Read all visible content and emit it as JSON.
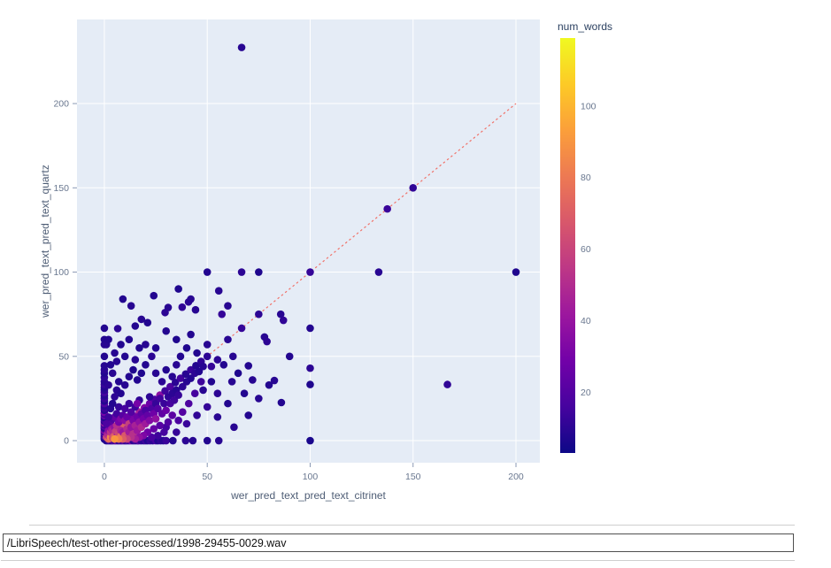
{
  "chart_data": {
    "type": "scatter",
    "xlabel": "wer_pred_text_pred_text_citrinet",
    "ylabel": "wer_pred_text_pred_text_quartz",
    "xlim": [
      -13.3,
      211.6
    ],
    "ylim": [
      -13.1,
      249.9
    ],
    "x_ticks": [
      0,
      50,
      100,
      150,
      200
    ],
    "y_ticks": [
      0,
      50,
      100,
      150,
      200
    ],
    "grid": true,
    "plot_bg": "#e5ecf6",
    "grid_color": "#ffffff",
    "tick_color": "#69778f",
    "axis_title_color": "#4e5d75",
    "marker_radius_px": 4.3,
    "reference_line": {
      "style": "dashed",
      "color": "#f2655a",
      "from": [
        0,
        0
      ],
      "to": [
        200,
        200
      ]
    },
    "colorbar": {
      "title": "num_words",
      "title_color": "#2a3f5f",
      "ticks": [
        20,
        40,
        60,
        80,
        100
      ],
      "cmin": 3,
      "cmax": 119,
      "colormap": "plasma",
      "stops": [
        "#0d0887",
        "#46039f",
        "#7201a8",
        "#9c179e",
        "#bd3786",
        "#d8576b",
        "#ed7953",
        "#fb9f3a",
        "#fdca26",
        "#f0f921"
      ]
    },
    "points": [
      [
        66.7,
        233.3,
        9
      ],
      [
        150,
        150,
        11
      ],
      [
        137.5,
        137.5,
        13
      ],
      [
        50,
        100,
        8
      ],
      [
        66.7,
        100,
        10
      ],
      [
        75,
        100,
        7
      ],
      [
        100,
        100,
        12
      ],
      [
        133.3,
        100,
        9
      ],
      [
        200,
        100,
        7
      ],
      [
        166.7,
        33.3,
        11
      ],
      [
        100,
        66.7,
        8
      ],
      [
        100,
        43,
        10
      ],
      [
        100,
        33.3,
        7
      ],
      [
        100,
        0,
        6
      ],
      [
        55.6,
        88.9,
        9
      ],
      [
        0,
        66.7,
        8
      ],
      [
        6.5,
        66.5,
        10
      ],
      [
        85.7,
        75,
        9
      ],
      [
        87,
        71.4,
        11
      ],
      [
        75,
        75,
        10
      ],
      [
        66.7,
        66.7,
        12
      ],
      [
        77.8,
        61.5,
        9
      ],
      [
        79,
        58.8,
        10
      ],
      [
        40.9,
        82.3,
        10
      ],
      [
        42,
        84,
        9
      ],
      [
        37.8,
        79.2,
        11
      ],
      [
        44.3,
        77.6,
        9
      ],
      [
        82.6,
        35.7,
        9
      ],
      [
        86,
        22.6,
        8
      ],
      [
        31,
        79,
        9
      ],
      [
        29.5,
        76,
        10
      ],
      [
        18,
        72,
        9
      ],
      [
        15,
        68,
        8
      ],
      [
        21,
        70,
        8
      ],
      [
        9,
        84,
        8
      ],
      [
        13,
        80,
        9
      ],
      [
        24,
        86,
        8
      ],
      [
        36,
        90,
        7
      ],
      [
        60,
        80,
        9
      ],
      [
        57.1,
        75,
        12
      ],
      [
        62.5,
        50,
        9
      ],
      [
        70,
        44.4,
        8
      ],
      [
        90,
        50,
        8
      ],
      [
        63,
        8,
        9
      ],
      [
        70,
        15,
        8
      ],
      [
        75,
        25,
        9
      ],
      [
        68,
        28,
        8
      ],
      [
        72,
        36,
        9
      ],
      [
        80,
        33,
        8
      ],
      [
        0,
        0.8,
        6
      ],
      [
        0,
        1.5,
        9
      ],
      [
        0,
        2.2,
        12
      ],
      [
        0,
        3,
        18
      ],
      [
        0,
        3.8,
        8
      ],
      [
        0,
        4.5,
        25
      ],
      [
        0,
        5.3,
        11
      ],
      [
        0,
        6,
        33
      ],
      [
        0,
        7,
        15
      ],
      [
        0,
        7.8,
        9
      ],
      [
        0,
        8.6,
        21
      ],
      [
        0,
        9.5,
        13
      ],
      [
        0,
        10.5,
        41
      ],
      [
        0,
        11.4,
        10
      ],
      [
        0,
        12.5,
        17
      ],
      [
        0,
        13.6,
        8
      ],
      [
        0,
        14.8,
        24
      ],
      [
        0,
        16,
        11
      ],
      [
        0,
        16.7,
        30
      ],
      [
        0,
        18,
        9
      ],
      [
        0,
        19.2,
        14
      ],
      [
        0,
        20.5,
        10
      ],
      [
        0,
        22,
        19
      ],
      [
        0,
        23.5,
        8
      ],
      [
        0,
        25,
        13
      ],
      [
        0,
        26.7,
        9
      ],
      [
        0,
        28.6,
        16
      ],
      [
        0,
        30,
        10
      ],
      [
        0,
        31.5,
        8
      ],
      [
        0,
        33.3,
        12
      ],
      [
        0,
        35,
        9
      ],
      [
        0,
        37.5,
        11
      ],
      [
        0,
        40,
        8
      ],
      [
        0,
        42,
        10
      ],
      [
        0,
        44.4,
        9
      ],
      [
        0,
        50,
        8
      ],
      [
        0,
        57,
        9
      ],
      [
        0,
        60,
        8
      ],
      [
        0.9,
        0,
        7
      ],
      [
        1.8,
        0,
        10
      ],
      [
        2.7,
        0,
        14
      ],
      [
        3.5,
        0,
        8
      ],
      [
        4.3,
        0,
        19
      ],
      [
        5.2,
        0,
        11
      ],
      [
        6,
        0,
        28
      ],
      [
        6.8,
        0,
        9
      ],
      [
        7.7,
        0,
        15
      ],
      [
        8.5,
        0,
        12
      ],
      [
        9.4,
        0,
        22
      ],
      [
        10.2,
        0,
        8
      ],
      [
        11,
        0,
        16
      ],
      [
        12,
        0,
        10
      ],
      [
        13,
        0,
        31
      ],
      [
        14,
        0,
        9
      ],
      [
        15,
        0,
        13
      ],
      [
        16,
        0,
        8
      ],
      [
        16.7,
        0,
        20
      ],
      [
        17.8,
        0,
        11
      ],
      [
        19,
        0,
        9
      ],
      [
        20,
        0,
        14
      ],
      [
        21,
        0,
        8
      ],
      [
        22.2,
        0,
        12
      ],
      [
        23.5,
        0,
        10
      ],
      [
        25,
        0,
        16
      ],
      [
        26,
        0,
        8
      ],
      [
        27.3,
        0,
        11
      ],
      [
        28.6,
        0,
        9
      ],
      [
        30,
        0,
        13
      ],
      [
        33.3,
        0,
        8
      ],
      [
        39.5,
        0,
        10
      ],
      [
        43,
        0,
        9
      ],
      [
        50,
        0,
        8
      ],
      [
        55.6,
        0,
        9
      ],
      [
        2,
        2,
        40
      ],
      [
        4.5,
        4.5,
        65
      ],
      [
        7,
        7,
        58
      ],
      [
        9.5,
        9.5,
        70
      ],
      [
        12,
        12,
        18
      ],
      [
        14.5,
        14.5,
        29
      ],
      [
        17,
        17,
        46
      ],
      [
        19.5,
        19.5,
        33
      ],
      [
        22,
        22,
        27
      ],
      [
        24.5,
        24.5,
        17
      ],
      [
        27,
        27,
        36
      ],
      [
        29.5,
        29.5,
        14
      ],
      [
        32,
        32,
        18
      ],
      [
        34.5,
        34.5,
        10
      ],
      [
        37,
        37,
        15
      ],
      [
        39.5,
        39.5,
        9
      ],
      [
        42,
        42,
        13
      ],
      [
        44.5,
        44.5,
        8
      ],
      [
        47,
        47,
        11
      ],
      [
        50,
        50,
        10
      ],
      [
        1,
        2,
        60
      ],
      [
        1.5,
        4,
        45
      ],
      [
        2,
        1,
        75
      ],
      [
        2,
        3,
        50
      ],
      [
        2,
        6,
        35
      ],
      [
        2.5,
        9,
        28
      ],
      [
        3,
        2,
        85
      ],
      [
        3,
        5,
        55
      ],
      [
        3,
        11,
        22
      ],
      [
        3.5,
        7,
        40
      ],
      [
        4,
        1.5,
        65
      ],
      [
        4,
        6,
        48
      ],
      [
        4,
        13,
        18
      ],
      [
        5,
        3,
        72
      ],
      [
        5,
        8,
        38
      ],
      [
        5,
        14,
        25
      ],
      [
        5.5,
        5.5,
        58
      ],
      [
        6,
        2,
        44
      ],
      [
        6,
        9,
        52
      ],
      [
        6,
        16,
        15
      ],
      [
        7,
        4,
        62
      ],
      [
        7,
        11,
        30
      ],
      [
        7,
        20,
        12
      ],
      [
        8,
        6,
        47
      ],
      [
        8,
        13,
        33
      ],
      [
        8,
        2.5,
        78
      ],
      [
        9,
        5,
        41
      ],
      [
        9,
        15,
        21
      ],
      [
        10,
        3,
        68
      ],
      [
        10,
        12,
        36
      ],
      [
        10,
        19,
        16
      ],
      [
        11,
        7,
        50
      ],
      [
        11,
        14,
        26
      ],
      [
        12,
        5,
        44
      ],
      [
        12,
        10,
        58
      ],
      [
        12,
        22,
        13
      ],
      [
        13,
        8,
        39
      ],
      [
        13,
        17,
        19
      ],
      [
        14,
        4,
        52
      ],
      [
        14,
        12,
        31
      ],
      [
        15,
        9,
        46
      ],
      [
        15,
        20,
        14
      ],
      [
        16,
        6,
        42
      ],
      [
        16,
        14,
        27
      ],
      [
        17,
        11,
        37
      ],
      [
        17,
        24,
        11
      ],
      [
        18,
        8,
        49
      ],
      [
        18,
        16,
        22
      ],
      [
        19,
        13,
        29
      ],
      [
        20,
        10,
        43
      ],
      [
        20,
        18,
        17
      ],
      [
        21,
        15,
        24
      ],
      [
        22,
        12,
        34
      ],
      [
        22,
        26,
        10
      ],
      [
        23,
        19,
        18
      ],
      [
        24,
        16,
        28
      ],
      [
        25,
        13,
        38
      ],
      [
        25,
        22,
        12
      ],
      [
        26,
        19,
        20
      ],
      [
        27,
        25,
        15
      ],
      [
        28,
        16,
        23
      ],
      [
        29,
        22,
        13
      ],
      [
        30,
        18,
        26
      ],
      [
        31,
        26,
        11
      ],
      [
        32,
        22,
        16
      ],
      [
        33,
        28,
        10
      ],
      [
        34,
        24,
        14
      ],
      [
        35,
        30,
        9
      ],
      [
        36,
        27,
        12
      ],
      [
        38,
        32,
        10
      ],
      [
        40,
        35,
        9
      ],
      [
        42,
        37,
        8
      ],
      [
        44,
        40,
        10
      ],
      [
        46,
        41,
        8
      ],
      [
        48,
        44,
        9
      ],
      [
        3,
        19,
        9
      ],
      [
        4,
        22,
        8
      ],
      [
        5,
        26,
        10
      ],
      [
        6,
        30,
        9
      ],
      [
        2,
        14,
        14
      ],
      [
        1,
        10,
        18
      ],
      [
        8,
        28,
        8
      ],
      [
        10,
        33,
        9
      ],
      [
        12,
        38,
        8
      ],
      [
        14,
        42,
        7
      ],
      [
        7,
        35,
        8
      ],
      [
        4,
        40,
        9
      ],
      [
        2,
        33,
        10
      ],
      [
        16,
        36,
        8
      ],
      [
        18,
        40,
        7
      ],
      [
        20,
        45,
        8
      ],
      [
        15,
        48,
        9
      ],
      [
        10,
        50,
        8
      ],
      [
        25,
        40,
        9
      ],
      [
        28,
        35,
        10
      ],
      [
        30,
        42,
        8
      ],
      [
        35,
        45,
        9
      ],
      [
        33,
        38,
        9
      ],
      [
        37,
        50,
        8
      ],
      [
        40,
        55,
        7
      ],
      [
        25,
        55,
        8
      ],
      [
        20,
        57,
        9
      ],
      [
        45,
        52,
        8
      ],
      [
        50,
        57,
        9
      ],
      [
        42,
        63,
        8
      ],
      [
        35,
        60,
        7
      ],
      [
        30,
        65,
        8
      ],
      [
        23,
        50,
        10
      ],
      [
        48,
        30,
        9
      ],
      [
        52,
        35,
        8
      ],
      [
        55,
        28,
        10
      ],
      [
        50,
        20,
        12
      ],
      [
        45,
        15,
        11
      ],
      [
        40,
        10,
        13
      ],
      [
        35,
        5,
        12
      ],
      [
        30,
        8,
        15
      ],
      [
        55,
        14,
        9
      ],
      [
        60,
        22,
        8
      ],
      [
        62,
        35,
        9
      ],
      [
        58,
        45,
        8
      ],
      [
        65,
        40,
        7
      ],
      [
        60,
        60,
        9
      ],
      [
        55,
        48,
        10
      ],
      [
        52,
        44,
        12
      ],
      [
        47,
        35,
        14
      ],
      [
        44,
        28,
        16
      ],
      [
        41,
        22,
        18
      ],
      [
        38,
        17,
        20
      ],
      [
        36,
        12,
        17
      ],
      [
        33,
        15,
        22
      ],
      [
        31,
        11,
        19
      ],
      [
        29,
        5,
        16
      ],
      [
        27,
        9,
        21
      ],
      [
        26,
        3,
        14
      ],
      [
        24,
        7,
        25
      ],
      [
        23,
        2,
        17
      ],
      [
        21,
        5,
        28
      ],
      [
        19,
        3,
        32
      ],
      [
        17,
        2,
        38
      ],
      [
        15,
        1,
        45
      ],
      [
        13,
        2,
        52
      ],
      [
        11,
        1,
        60
      ],
      [
        9,
        1,
        70
      ],
      [
        7,
        1,
        82
      ],
      [
        5,
        1,
        90
      ],
      [
        16,
        22,
        30
      ],
      [
        3,
        45,
        8
      ],
      [
        5,
        52,
        9
      ],
      [
        8,
        57,
        8
      ],
      [
        1,
        57,
        9
      ],
      [
        2,
        60,
        8
      ],
      [
        12,
        60,
        8
      ],
      [
        17,
        55,
        8
      ],
      [
        6,
        47,
        9
      ]
    ]
  },
  "footer": {
    "file_input_value": "/LibriSpeech/test-other-processed/1998-29455-0029.wav"
  }
}
